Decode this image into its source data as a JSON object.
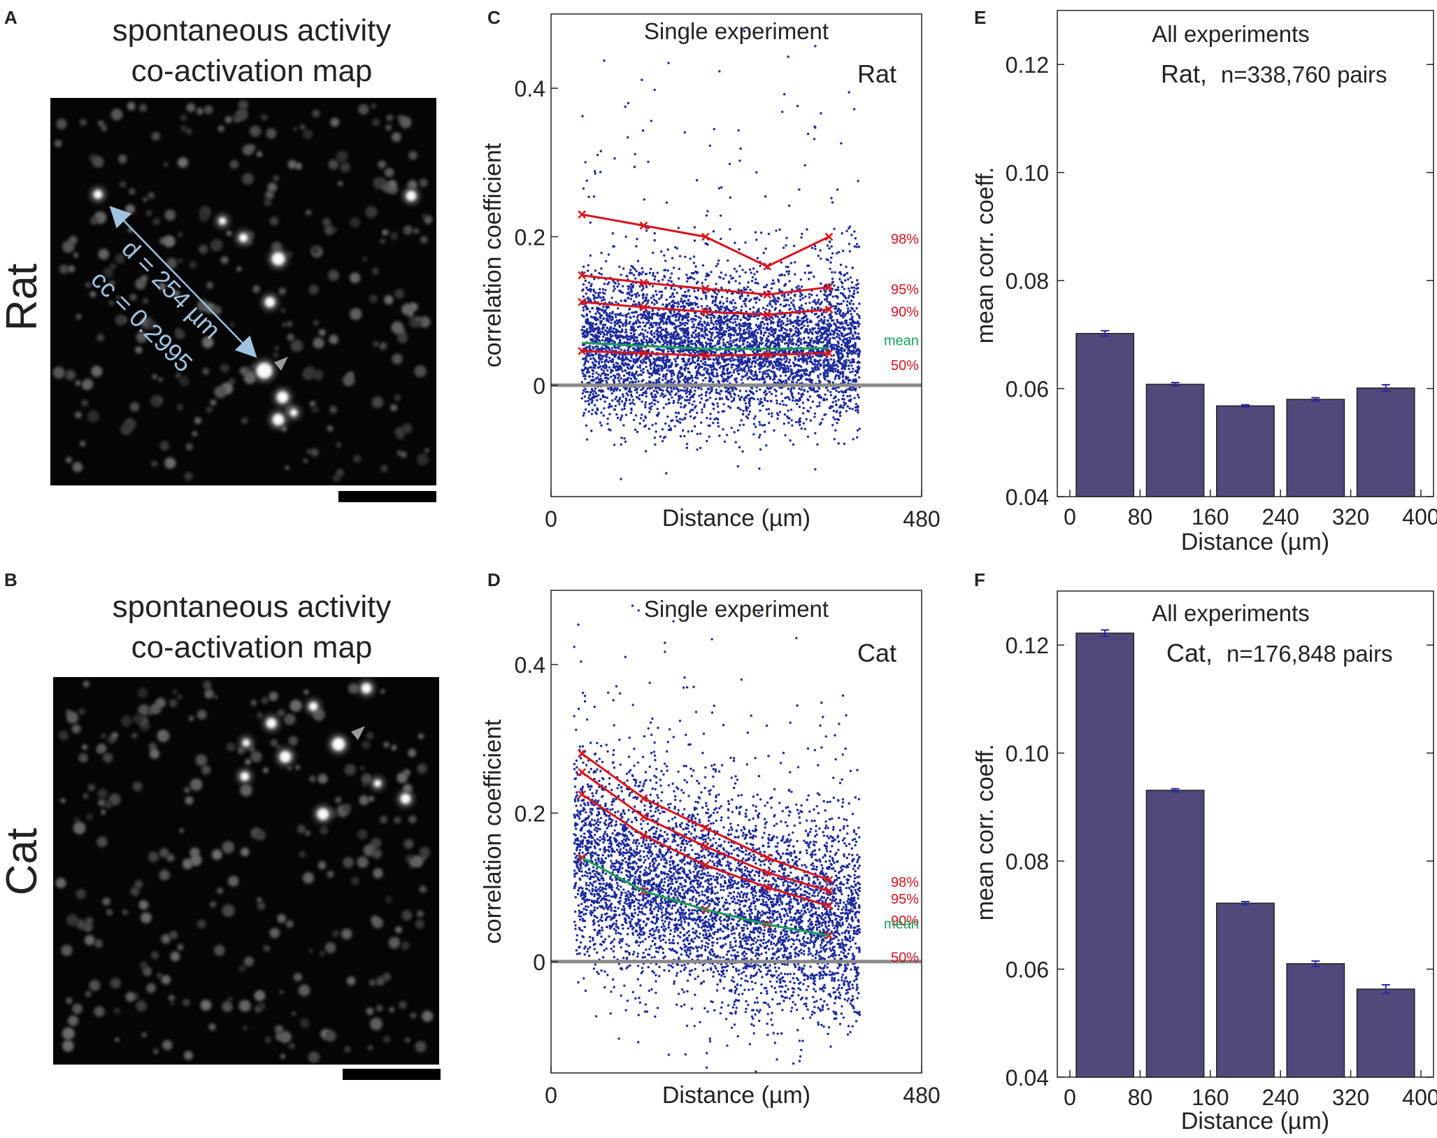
{
  "panels": {
    "A": {
      "letter": "A",
      "title_line1": "spontaneous activity",
      "title_line2": "co-activation map",
      "species": "Rat",
      "distance_label": "d = 254 µm",
      "cc_label": "cc = 0.2995"
    },
    "B": {
      "letter": "B",
      "title_line1": "spontaneous activity",
      "title_line2": "co-activation map",
      "species": "Cat"
    },
    "C": {
      "letter": "C"
    },
    "D": {
      "letter": "D"
    },
    "E": {
      "letter": "E"
    },
    "F": {
      "letter": "F"
    }
  },
  "chart_data": [
    {
      "id": "C",
      "type": "scatter",
      "title": "Single experiment",
      "species": "Rat",
      "xlabel": "Distance (µm)",
      "ylabel": "correlation coefficient",
      "xlim": [
        0,
        480
      ],
      "ylim": [
        -0.15,
        0.5
      ],
      "xticks": [
        0,
        480
      ],
      "yticks": [
        0,
        0.2,
        0.4
      ],
      "ytick_labels": [
        "0",
        "0.2",
        "0.4"
      ],
      "percentile_x": [
        40,
        120,
        200,
        280,
        360
      ],
      "percentiles": [
        {
          "label": "98%",
          "values": [
            0.23,
            0.215,
            0.2,
            0.16,
            0.2
          ]
        },
        {
          "label": "95%",
          "values": [
            0.148,
            0.138,
            0.13,
            0.122,
            0.132
          ]
        },
        {
          "label": "90%",
          "values": [
            0.112,
            0.105,
            0.099,
            0.095,
            0.102
          ]
        },
        {
          "label": "50%",
          "values": [
            0.046,
            0.043,
            0.04,
            0.041,
            0.043
          ]
        }
      ],
      "mean": {
        "label": "mean",
        "values": [
          0.057,
          0.053,
          0.049,
          0.049,
          0.05
        ]
      },
      "point_cloud": {
        "center_mean": 0.05,
        "spread": 0.05,
        "x_range": [
          40,
          400
        ]
      }
    },
    {
      "id": "D",
      "type": "scatter",
      "title": "Single experiment",
      "species": "Cat",
      "xlabel": "Distance (µm)",
      "ylabel": "correlation coefficient",
      "xlim": [
        0,
        480
      ],
      "ylim": [
        -0.15,
        0.5
      ],
      "xticks": [
        0,
        480
      ],
      "yticks": [
        0,
        0.2,
        0.4
      ],
      "ytick_labels": [
        "0",
        "0.2",
        "0.4"
      ],
      "percentile_x": [
        40,
        120,
        200,
        280,
        360
      ],
      "percentiles": [
        {
          "label": "98%",
          "values": [
            0.28,
            0.22,
            0.18,
            0.14,
            0.11
          ]
        },
        {
          "label": "95%",
          "values": [
            0.255,
            0.195,
            0.155,
            0.12,
            0.095
          ]
        },
        {
          "label": "90%",
          "values": [
            0.225,
            0.17,
            0.13,
            0.1,
            0.075
          ]
        },
        {
          "label": "50%",
          "values": [
            0.14,
            0.095,
            0.07,
            0.05,
            0.035
          ]
        }
      ],
      "mean": {
        "label": "mean",
        "values": [
          0.14,
          0.095,
          0.07,
          0.05,
          0.035
        ]
      },
      "point_cloud": {
        "center_mean": 0.14,
        "spread": 0.07,
        "x_range": [
          30,
          400
        ]
      }
    },
    {
      "id": "E",
      "type": "bar",
      "title": "All experiments",
      "subtitle_species": "Rat,",
      "subtitle_n": "n=338,760 pairs",
      "xlabel": "Distance (µm)",
      "ylabel": "mean corr. coeff.",
      "xticks": [
        0,
        80,
        160,
        240,
        320,
        400
      ],
      "yticks": [
        0.04,
        0.06,
        0.08,
        0.1,
        0.12
      ],
      "ytick_labels": [
        "0.04",
        "0.06",
        "0.08",
        "0.10",
        "0.12"
      ],
      "ylim": [
        0.04,
        0.13
      ],
      "xlim": [
        0,
        400
      ],
      "bin_centers": [
        40,
        120,
        200,
        280,
        360
      ],
      "values": [
        0.0702,
        0.0608,
        0.0568,
        0.058,
        0.0601
      ],
      "errors": [
        0.0005,
        0.0003,
        0.0002,
        0.0003,
        0.0006
      ]
    },
    {
      "id": "F",
      "type": "bar",
      "title": "All experiments",
      "subtitle_species": "Cat,",
      "subtitle_n": "n=176,848 pairs",
      "xlabel": "Distance (µm)",
      "ylabel": "mean corr. coeff.",
      "xticks": [
        0,
        80,
        160,
        240,
        320,
        400
      ],
      "yticks": [
        0.04,
        0.06,
        0.08,
        0.1,
        0.12
      ],
      "ytick_labels": [
        "0.04",
        "0.06",
        "0.08",
        "0.10",
        "0.12"
      ],
      "ylim": [
        0.04,
        0.13
      ],
      "xlim": [
        0,
        400
      ],
      "bin_centers": [
        40,
        120,
        200,
        280,
        360
      ],
      "values": [
        0.1222,
        0.0931,
        0.0722,
        0.061,
        0.0563
      ],
      "errors": [
        0.0006,
        0.0003,
        0.0003,
        0.0005,
        0.0008
      ]
    }
  ],
  "colors": {
    "scatter": "#1c2a9a",
    "percentile": "#d8141c",
    "mean": "#17a05a",
    "bar_fill": "#4f4a7a",
    "error": "#2a2aa0",
    "zero_line": "#8a8a8a",
    "distance_arrow": "#9fc3e0"
  }
}
